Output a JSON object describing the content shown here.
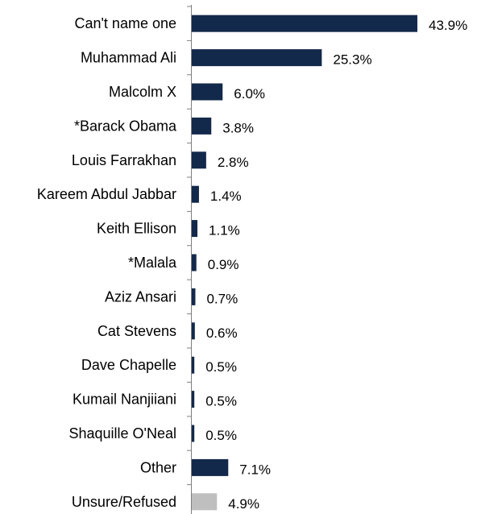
{
  "chart_data": {
    "type": "bar",
    "orientation": "horizontal",
    "categories": [
      "Can't name one",
      "Muhammad Ali",
      "Malcolm X",
      "*Barack Obama",
      "Louis Farrakhan",
      "Kareem Abdul Jabbar",
      "Keith Ellison",
      "*Malala",
      "Aziz Ansari",
      "Cat Stevens",
      "Dave Chapelle",
      "Kumail Nanjiiani",
      "Shaquille O'Neal",
      "Other",
      "Unsure/Refused"
    ],
    "values": [
      43.9,
      25.3,
      6.0,
      3.8,
      2.8,
      1.4,
      1.1,
      0.9,
      0.7,
      0.6,
      0.5,
      0.5,
      0.5,
      7.1,
      4.9
    ],
    "value_labels": [
      "43.9%",
      "25.3%",
      "6.0%",
      "3.8%",
      "2.8%",
      "1.4%",
      "1.1%",
      "0.9%",
      "0.7%",
      "0.6%",
      "0.5%",
      "0.5%",
      "0.5%",
      "7.1%",
      "4.9%"
    ],
    "bar_colors": [
      "#13294b",
      "#13294b",
      "#13294b",
      "#13294b",
      "#13294b",
      "#13294b",
      "#13294b",
      "#13294b",
      "#13294b",
      "#13294b",
      "#13294b",
      "#13294b",
      "#13294b",
      "#13294b",
      "#bfbfbf"
    ],
    "title": "",
    "xlabel": "",
    "ylabel": "",
    "xlim": [
      0,
      47
    ],
    "grid": false,
    "legend": "none"
  }
}
